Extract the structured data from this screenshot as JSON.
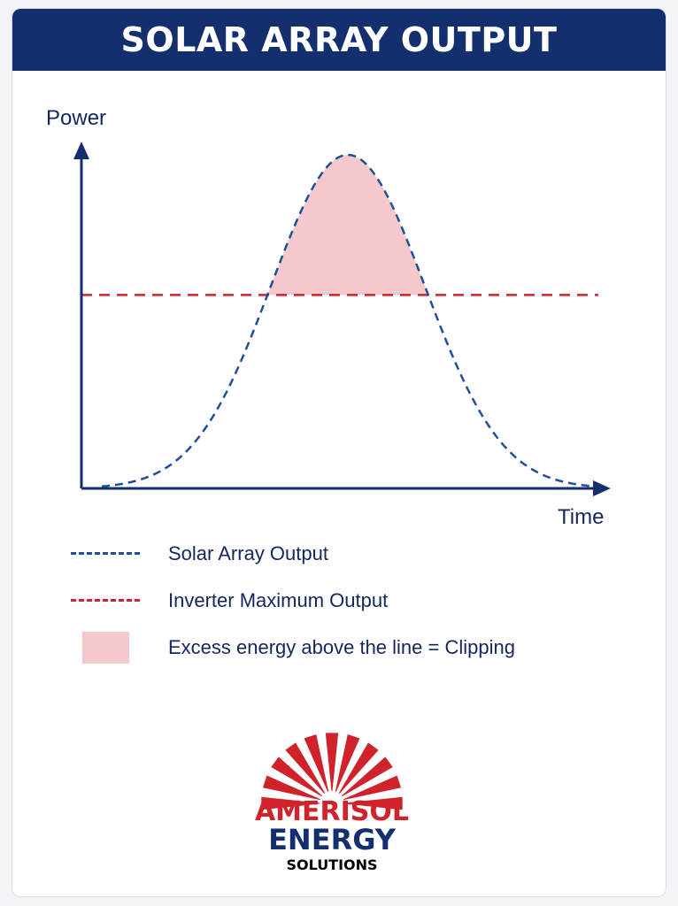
{
  "header": {
    "title": "SOLAR ARRAY OUTPUT"
  },
  "chart_data": {
    "type": "line",
    "xlabel": "Time",
    "ylabel": "Power",
    "series": [
      {
        "name": "Solar Array Output",
        "color": "#1f4f9c",
        "style": "dashed",
        "shape": "bell curve",
        "peak": 1.0
      },
      {
        "name": "Inverter Maximum Output",
        "color": "#d0222a",
        "style": "dashed",
        "value": 0.58
      }
    ],
    "shaded_region": {
      "label": "Excess energy above the line = Clipping",
      "color": "#f5c9cb"
    },
    "ylim": [
      0,
      1.0
    ],
    "grid": false
  },
  "legend": {
    "items": [
      {
        "label": "Solar Array Output",
        "kind": "dash",
        "color": "#1f4f9c"
      },
      {
        "label": "Inverter Maximum Output",
        "kind": "dash",
        "color": "#d0222a"
      },
      {
        "label": "Excess energy above the line = Clipping",
        "kind": "swatch",
        "color": "#f5c9cb"
      }
    ]
  },
  "logo": {
    "line1": "AMERISOL",
    "line2": "ENERGY",
    "line3": "SOLUTIONS",
    "colors": {
      "rays": "#d0222a",
      "line1": "#d0222a",
      "line2": "#132f6e",
      "line3": "#000000"
    }
  },
  "colors": {
    "axis": "#132f6e",
    "header": "#132f6e"
  }
}
